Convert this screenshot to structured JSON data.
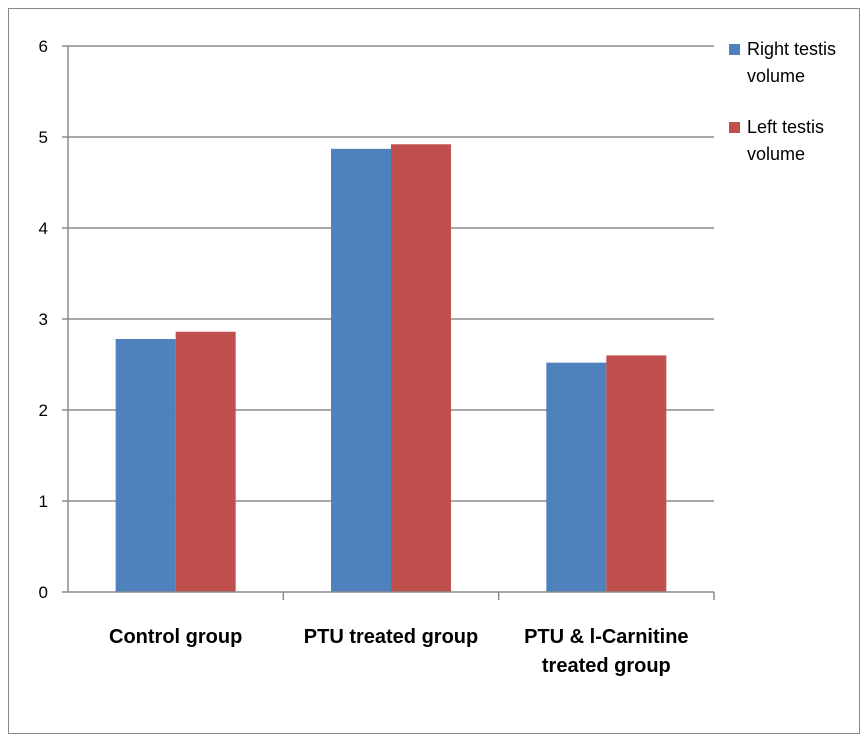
{
  "chart_data": {
    "type": "bar",
    "title": "",
    "xlabel": "",
    "ylabel": "",
    "categories": [
      [
        "Control group"
      ],
      [
        "PTU treated group"
      ],
      [
        "PTU & l-Carnitine",
        "treated group"
      ]
    ],
    "series": [
      {
        "name_lines": [
          "Right testis",
          "volume"
        ],
        "color": "#4F81BD",
        "values": [
          2.78,
          4.87,
          2.52
        ]
      },
      {
        "name_lines": [
          "Left testis",
          "volume"
        ],
        "color": "#C0504D",
        "values": [
          2.86,
          4.92,
          2.6
        ]
      }
    ],
    "ylim": [
      0,
      6
    ],
    "yticks": [
      0,
      1,
      2,
      3,
      4,
      5,
      6
    ],
    "grid": true,
    "legend_position": "right"
  },
  "colors": {
    "gridline": "#8c8c8c",
    "axis": "#8c8c8c",
    "frame": "#8a8a8a"
  }
}
